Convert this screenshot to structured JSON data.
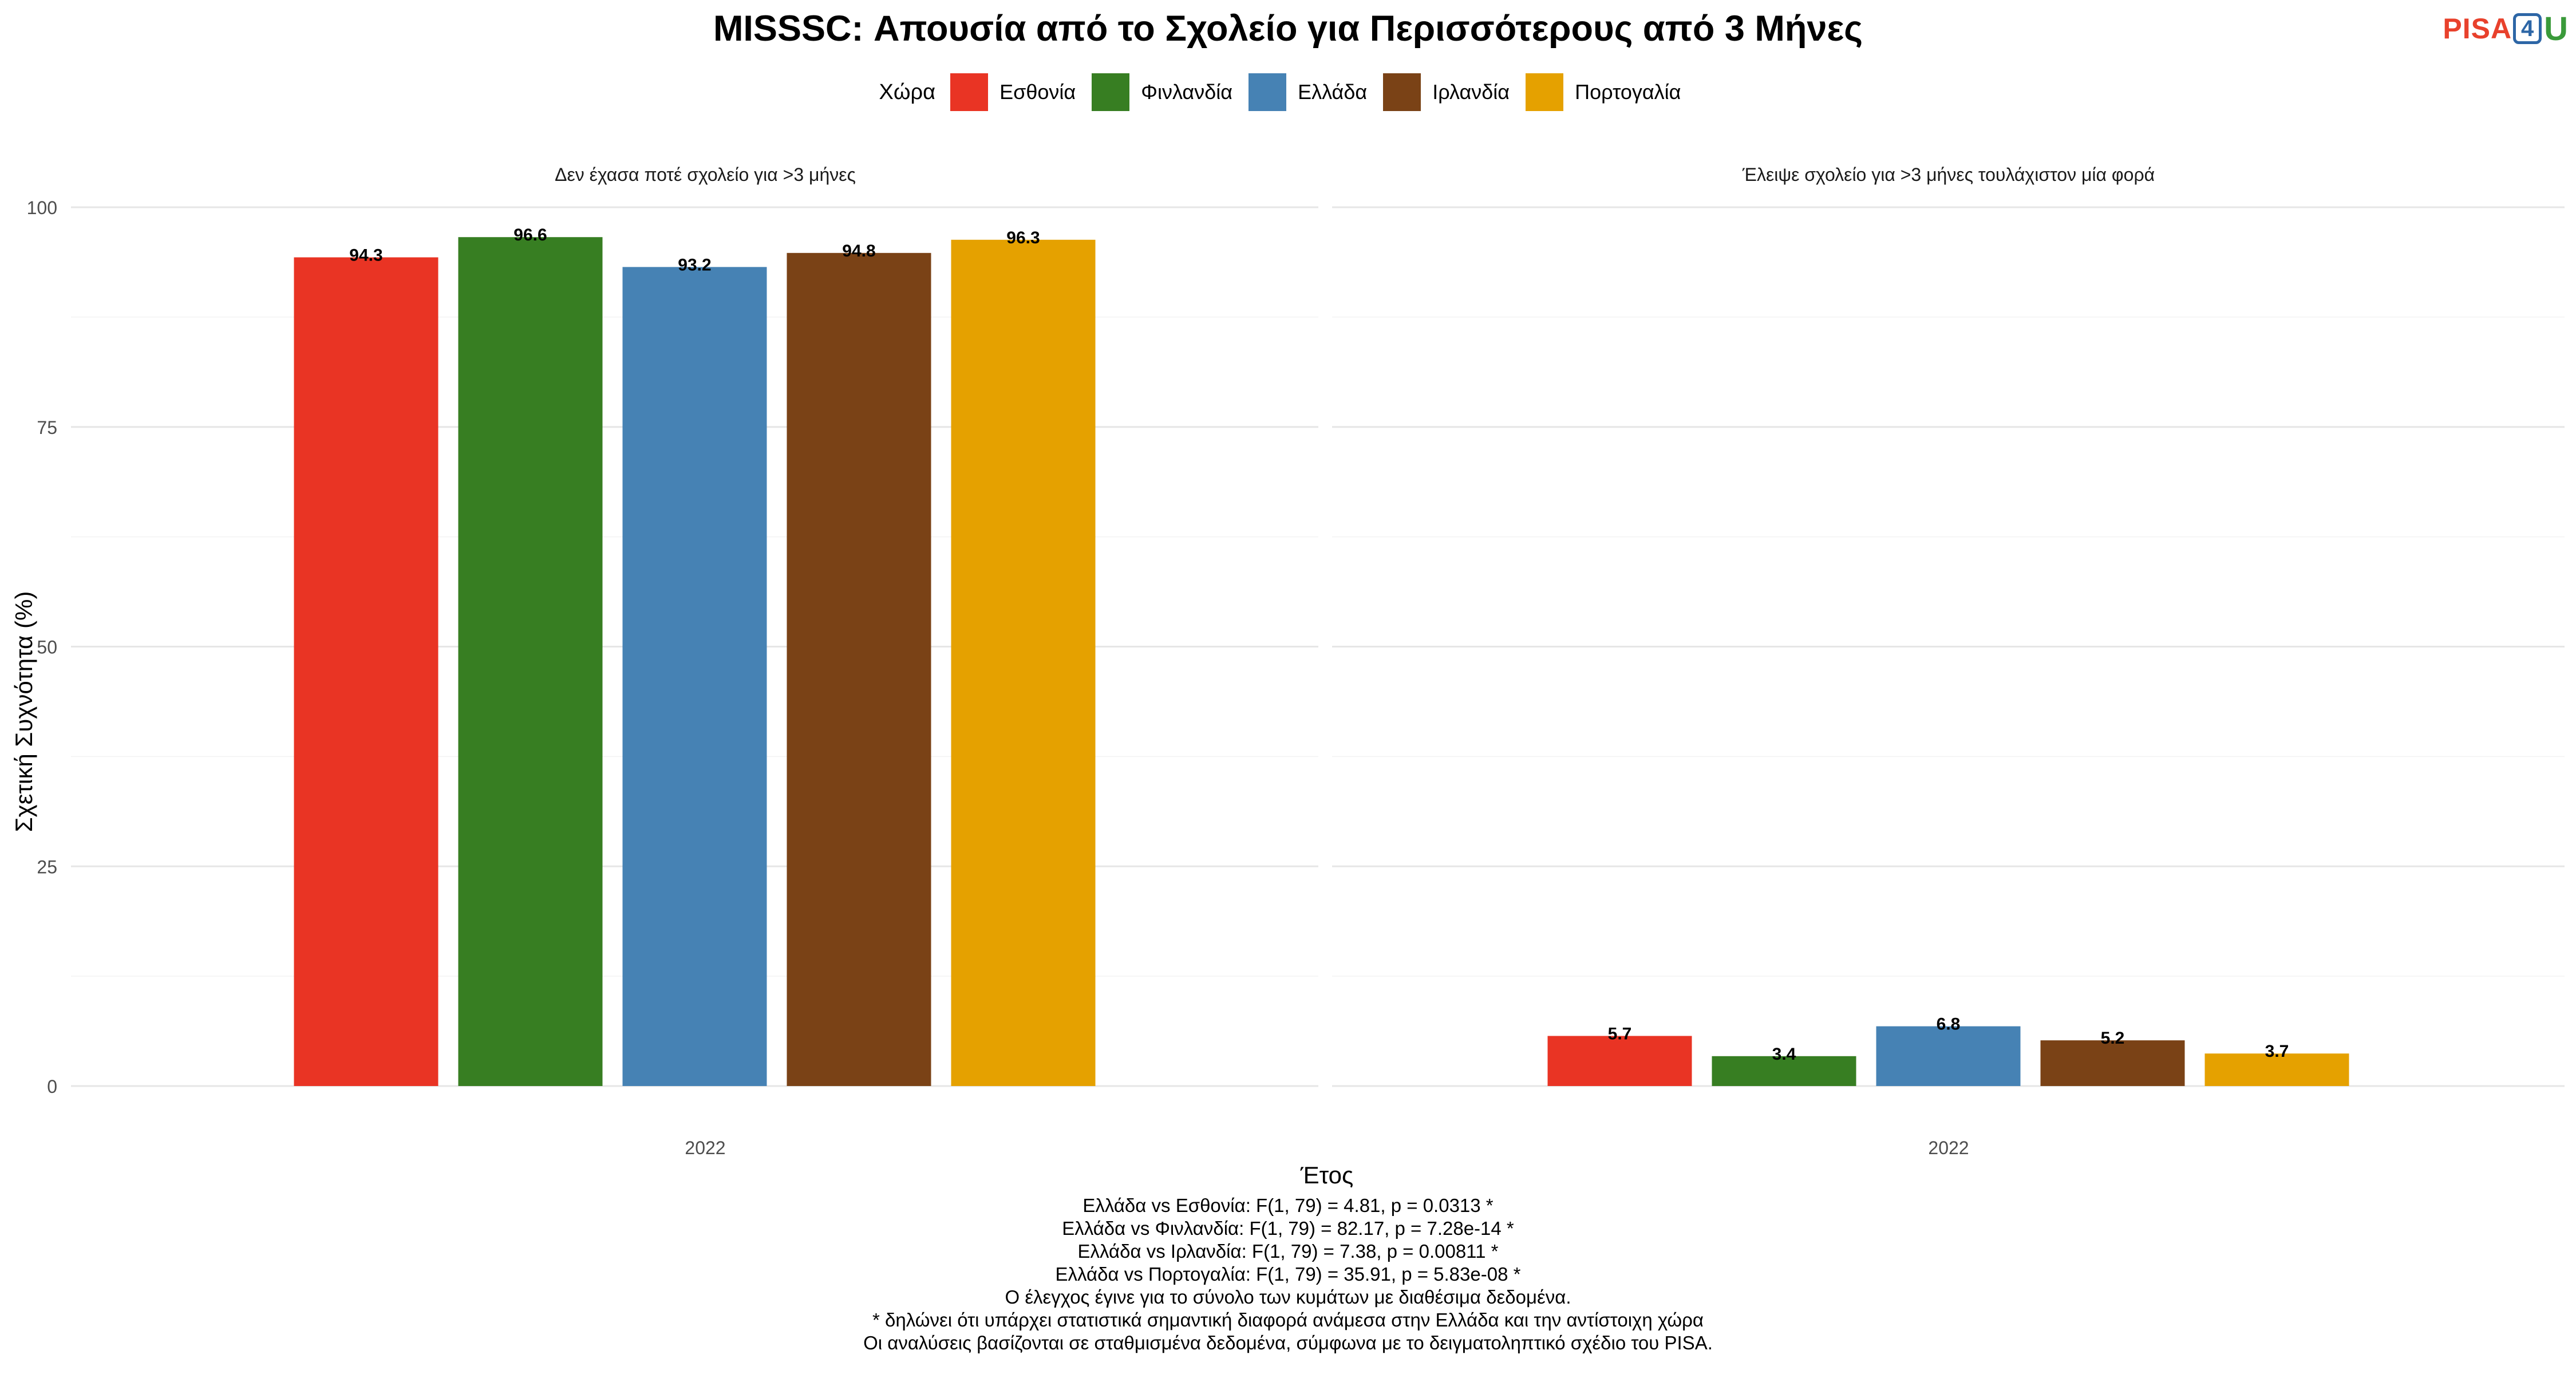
{
  "title": "MISSSC: Απουσία από το Σχολείο για Περισσότερους από 3 Μήνες",
  "logo": {
    "text_main": "PISA",
    "text_num": "4",
    "text_end": "U"
  },
  "legend": {
    "title": "Χώρα",
    "items": [
      {
        "label": "Εσθονία",
        "color": "#E93424"
      },
      {
        "label": "Φινλανδία",
        "color": "#377E22"
      },
      {
        "label": "Ελλάδα",
        "color": "#4682B4"
      },
      {
        "label": "Ιρλανδία",
        "color": "#7A4216"
      },
      {
        "label": "Πορτογαλία",
        "color": "#E5A100"
      }
    ]
  },
  "chart_data": {
    "type": "bar",
    "xlabel": "Έτος",
    "ylabel": "Σχετική Συχνότητα (%)",
    "ylim": [
      0,
      100
    ],
    "yticks": [
      0,
      25,
      50,
      75,
      100
    ],
    "grid": true,
    "legend_position": "top",
    "facets": [
      {
        "label": "Δεν έχασα ποτέ σχολείο για >3 μήνες",
        "categories": [
          "2022"
        ],
        "series": [
          {
            "name": "Εσθονία",
            "values": [
              94.3
            ]
          },
          {
            "name": "Φινλανδία",
            "values": [
              96.6
            ]
          },
          {
            "name": "Ελλάδα",
            "values": [
              93.2
            ]
          },
          {
            "name": "Ιρλανδία",
            "values": [
              94.8
            ]
          },
          {
            "name": "Πορτογαλία",
            "values": [
              96.3
            ]
          }
        ]
      },
      {
        "label": "Έλειψε σχολείο για >3 μήνες τουλάχιστον μία φορά",
        "categories": [
          "2022"
        ],
        "series": [
          {
            "name": "Εσθονία",
            "values": [
              5.7
            ]
          },
          {
            "name": "Φινλανδία",
            "values": [
              3.4
            ]
          },
          {
            "name": "Ελλάδα",
            "values": [
              6.8
            ]
          },
          {
            "name": "Ιρλανδία",
            "values": [
              5.2
            ]
          },
          {
            "name": "Πορτογαλία",
            "values": [
              3.7
            ]
          }
        ]
      }
    ]
  },
  "footer_lines": [
    "Ελλάδα vs Εσθονία: F(1, 79) = 4.81, p = 0.0313 *",
    "Ελλάδα vs Φινλανδία: F(1, 79) = 82.17, p = 7.28e-14 *",
    "Ελλάδα vs Ιρλανδία: F(1, 79) = 7.38, p = 0.00811 *",
    "Ελλάδα vs Πορτογαλία: F(1, 79) = 35.91, p = 5.83e-08 *",
    "Ο έλεγχος έγινε για το σύνολο των κυμάτων με διαθέσιμα δεδομένα.",
    "* δηλώνει ότι υπάρχει στατιστικά σημαντική διαφορά ανάμεσα στην Ελλάδα και την αντίστοιχη χώρα",
    "Οι αναλύσεις βασίζονται σε σταθμισμένα δεδομένα, σύμφωνα με το δειγματοληπτικό σχέδιο του PISA."
  ]
}
